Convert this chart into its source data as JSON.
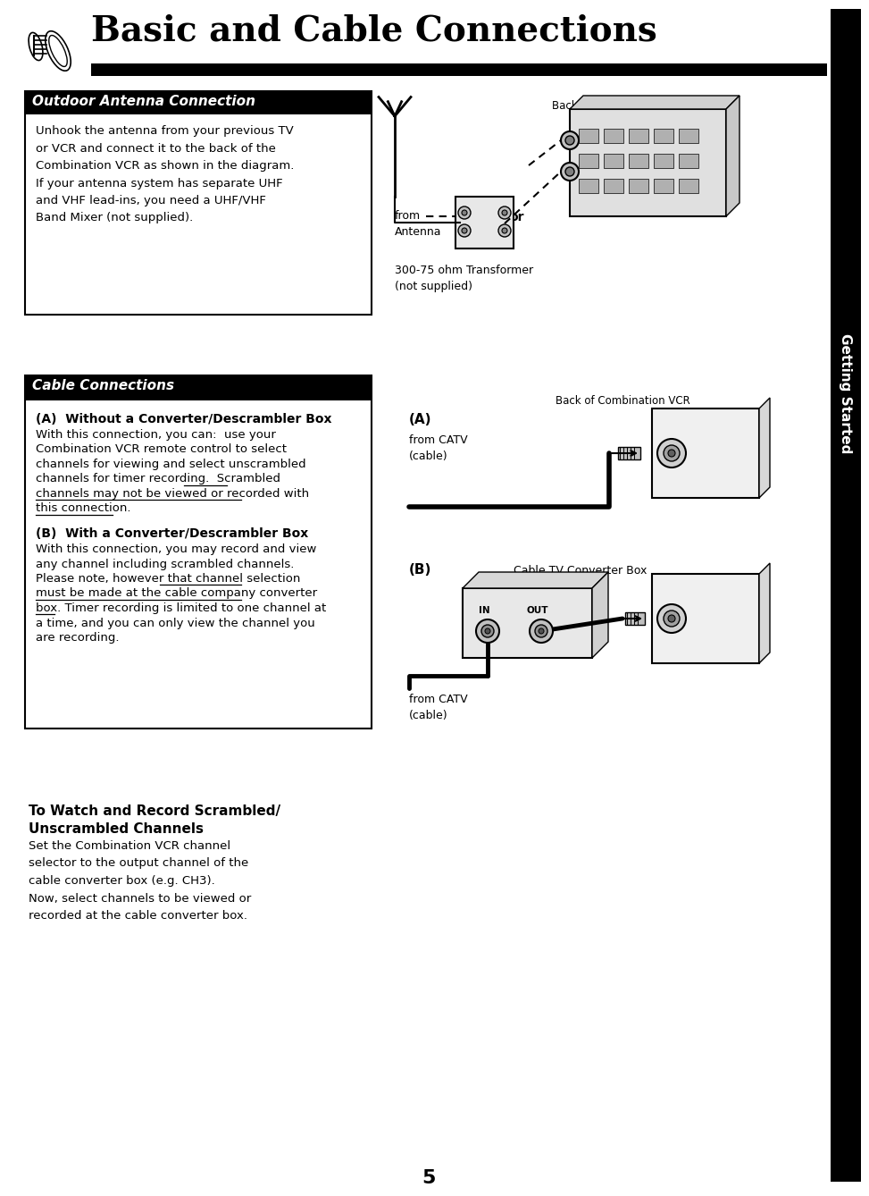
{
  "page_title": "Basic and Cable Connections",
  "bg_color": "#ffffff",
  "sidebar_bg": "#000000",
  "sidebar_text": "Getting Started",
  "page_number": "5",
  "section1_title": "Outdoor Antenna Connection",
  "section1_body": "Unhook the antenna from your previous TV\nor VCR and connect it to the back of the\nCombination VCR as shown in the diagram.\nIf your antenna system has separate UHF\nand VHF lead-ins, you need a UHF/VHF\nBand Mixer (not supplied).",
  "section1_diagram_label_top": "Back of Combination VCR",
  "section1_from": "from\nAntenna",
  "section1_or": "or",
  "section1_bottom_label": "300-75 ohm Transformer\n(not supplied)",
  "section2_title": "Cable Connections",
  "section2_subtitle_a": "(A)  Without a Converter/Descrambler Box",
  "section2_body_a1": "With this connection, you can:  use your\nCombination VCR remote control to select\nchannels for viewing and select unscrambled\nchannels for timer recording.  ",
  "section2_body_a2_ul": "Scrambled\nchannels may not be viewed or recorded with\nthis connection.",
  "section2_subtitle_b": "(B)  With a Converter/Descrambler Box",
  "section2_body_b1": "With this connection, you may record and view\nany channel including scrambled channels.\nPlease note, however that ",
  "section2_body_b2_ul": "channel selection\nmust be made at the cable company converter\nbox.",
  "section2_body_b3": " Timer recording is limited to one channel at\na time, and you can only view the channel you\nare recording.",
  "section2_diagram_label_top": "Back of Combination VCR",
  "section2_A_label": "(A)",
  "section2_A_from": "from CATV\n(cable)",
  "section2_B_label": "(B)",
  "section2_B_box_label": "Cable TV Converter Box",
  "section2_B_from": "from CATV\n(cable)",
  "footer_title": "To Watch and Record Scrambled/\nUnscrambled Channels",
  "footer_body": "Set the Combination VCR channel\nselector to the output channel of the\ncable converter box (e.g. CH3).\nNow, select channels to be viewed or\nrecorded at the cable converter box."
}
